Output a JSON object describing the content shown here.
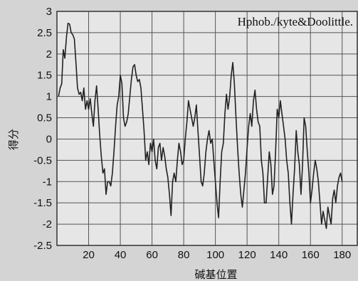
{
  "chart_data": {
    "type": "line",
    "legend_text": "Hphob./kyte&Doolittle.",
    "xlabel": "碱基位置",
    "ylabel": "得分",
    "xlim": [
      0,
      190
    ],
    "ylim": [
      -2.5,
      3
    ],
    "xticks": [
      20,
      40,
      60,
      80,
      100,
      120,
      140,
      160,
      180
    ],
    "yticks": [
      3,
      2.5,
      2,
      1.5,
      1,
      0.5,
      0,
      -0.5,
      -1,
      -1.5,
      -2,
      -2.5
    ],
    "grid": true,
    "colors": {
      "line": "#222222",
      "grid": "#555555",
      "plot_bg": "#e6e6e6",
      "page_bg": "#d4d4d4"
    },
    "series": [
      {
        "points": [
          [
            1,
            1.0
          ],
          [
            2,
            1.2
          ],
          [
            3,
            1.3
          ],
          [
            4,
            2.1
          ],
          [
            5,
            1.9
          ],
          [
            6,
            2.4
          ],
          [
            7,
            2.72
          ],
          [
            8,
            2.7
          ],
          [
            9,
            2.5
          ],
          [
            10,
            2.45
          ],
          [
            11,
            2.35
          ],
          [
            12,
            1.8
          ],
          [
            13,
            1.2
          ],
          [
            14,
            1.05
          ],
          [
            15,
            1.1
          ],
          [
            16,
            0.9
          ],
          [
            17,
            1.2
          ],
          [
            18,
            0.7
          ],
          [
            19,
            0.9
          ],
          [
            20,
            0.7
          ],
          [
            21,
            0.95
          ],
          [
            22,
            0.6
          ],
          [
            23,
            0.3
          ],
          [
            24,
            0.9
          ],
          [
            25,
            1.25
          ],
          [
            26,
            0.7
          ],
          [
            27,
            0.1
          ],
          [
            28,
            -0.4
          ],
          [
            29,
            -0.8
          ],
          [
            30,
            -0.7
          ],
          [
            31,
            -1.3
          ],
          [
            32,
            -1.0
          ],
          [
            33,
            -1.0
          ],
          [
            34,
            -1.1
          ],
          [
            35,
            -0.8
          ],
          [
            36,
            -0.3
          ],
          [
            37,
            0.3
          ],
          [
            38,
            0.8
          ],
          [
            39,
            1.0
          ],
          [
            40,
            1.5
          ],
          [
            41,
            1.3
          ],
          [
            42,
            0.5
          ],
          [
            43,
            0.3
          ],
          [
            44,
            0.4
          ],
          [
            45,
            0.6
          ],
          [
            46,
            1.0
          ],
          [
            47,
            1.4
          ],
          [
            48,
            1.7
          ],
          [
            49,
            1.75
          ],
          [
            50,
            1.5
          ],
          [
            51,
            1.35
          ],
          [
            52,
            1.4
          ],
          [
            53,
            1.2
          ],
          [
            54,
            0.7
          ],
          [
            55,
            0.2
          ],
          [
            56,
            -0.5
          ],
          [
            57,
            -0.3
          ],
          [
            58,
            -0.6
          ],
          [
            59,
            -0.1
          ],
          [
            60,
            -0.3
          ],
          [
            61,
            0.0
          ],
          [
            62,
            -0.5
          ],
          [
            63,
            -0.7
          ],
          [
            64,
            -0.2
          ],
          [
            65,
            -0.1
          ],
          [
            66,
            -0.5
          ],
          [
            67,
            -0.2
          ],
          [
            68,
            -0.4
          ],
          [
            69,
            -0.7
          ],
          [
            70,
            -0.9
          ],
          [
            71,
            -1.3
          ],
          [
            72,
            -1.8
          ],
          [
            73,
            -1.0
          ],
          [
            74,
            -0.8
          ],
          [
            75,
            -1.0
          ],
          [
            76,
            -0.5
          ],
          [
            77,
            -0.1
          ],
          [
            78,
            -0.3
          ],
          [
            79,
            -0.6
          ],
          [
            80,
            -0.5
          ],
          [
            81,
            0.0
          ],
          [
            82,
            0.4
          ],
          [
            83,
            0.9
          ],
          [
            84,
            0.7
          ],
          [
            85,
            0.5
          ],
          [
            86,
            0.3
          ],
          [
            87,
            0.5
          ],
          [
            88,
            0.8
          ],
          [
            89,
            0.2
          ],
          [
            90,
            -0.4
          ],
          [
            91,
            -1.0
          ],
          [
            92,
            -1.1
          ],
          [
            93,
            -0.8
          ],
          [
            94,
            -0.3
          ],
          [
            95,
            0.0
          ],
          [
            96,
            0.2
          ],
          [
            97,
            -0.1
          ],
          [
            98,
            0.0
          ],
          [
            99,
            -0.5
          ],
          [
            100,
            -1.0
          ],
          [
            101,
            -1.5
          ],
          [
            102,
            -1.85
          ],
          [
            103,
            -1.0
          ],
          [
            104,
            -0.3
          ],
          [
            105,
            -0.1
          ],
          [
            106,
            0.6
          ],
          [
            107,
            1.05
          ],
          [
            108,
            0.7
          ],
          [
            109,
            1.0
          ],
          [
            110,
            1.5
          ],
          [
            111,
            1.8
          ],
          [
            112,
            1.3
          ],
          [
            113,
            0.5
          ],
          [
            114,
            -0.2
          ],
          [
            115,
            -0.8
          ],
          [
            116,
            -1.3
          ],
          [
            117,
            -1.6
          ],
          [
            118,
            -1.2
          ],
          [
            119,
            -0.8
          ],
          [
            120,
            -0.2
          ],
          [
            121,
            0.3
          ],
          [
            122,
            0.6
          ],
          [
            123,
            0.3
          ],
          [
            124,
            0.9
          ],
          [
            125,
            1.15
          ],
          [
            126,
            0.7
          ],
          [
            127,
            0.4
          ],
          [
            128,
            0.3
          ],
          [
            129,
            -0.5
          ],
          [
            130,
            -0.8
          ],
          [
            131,
            -1.5
          ],
          [
            132,
            -1.5
          ],
          [
            133,
            -0.9
          ],
          [
            134,
            -0.3
          ],
          [
            135,
            -0.6
          ],
          [
            136,
            -1.3
          ],
          [
            137,
            -1.1
          ],
          [
            138,
            -0.3
          ],
          [
            139,
            0.7
          ],
          [
            140,
            0.5
          ],
          [
            141,
            0.9
          ],
          [
            142,
            0.6
          ],
          [
            143,
            0.3
          ],
          [
            144,
            0.0
          ],
          [
            145,
            -0.5
          ],
          [
            146,
            -0.8
          ],
          [
            147,
            -1.5
          ],
          [
            148,
            -2.0
          ],
          [
            149,
            -1.3
          ],
          [
            150,
            -0.7
          ],
          [
            151,
            0.2
          ],
          [
            152,
            -0.3
          ],
          [
            153,
            -0.6
          ],
          [
            154,
            -1.3
          ],
          [
            155,
            -0.6
          ],
          [
            156,
            0.5
          ],
          [
            157,
            0.3
          ],
          [
            158,
            -0.3
          ],
          [
            159,
            -0.8
          ],
          [
            160,
            -1.5
          ],
          [
            161,
            -1.2
          ],
          [
            162,
            -0.8
          ],
          [
            163,
            -0.5
          ],
          [
            164,
            -0.7
          ],
          [
            165,
            -1.0
          ],
          [
            166,
            -1.5
          ],
          [
            167,
            -2.0
          ],
          [
            168,
            -1.7
          ],
          [
            169,
            -1.9
          ],
          [
            170,
            -2.1
          ],
          [
            171,
            -1.6
          ],
          [
            172,
            -1.8
          ],
          [
            173,
            -2.0
          ],
          [
            174,
            -1.4
          ],
          [
            175,
            -1.2
          ],
          [
            176,
            -1.5
          ],
          [
            177,
            -1.1
          ],
          [
            178,
            -0.9
          ],
          [
            179,
            -0.8
          ],
          [
            180,
            -1.0
          ]
        ]
      }
    ]
  }
}
